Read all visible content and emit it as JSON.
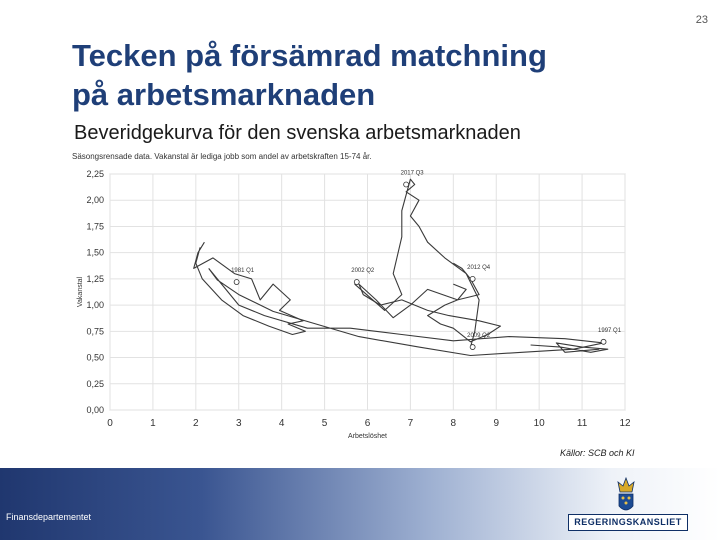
{
  "page_number": "23",
  "title_line1": "Tecken på försämrad matchning",
  "title_line2": "på arbetsmarknaden",
  "chart_title": "Beveridgekurva för den svenska arbetsmarknaden",
  "chart_subtitle": "Säsongsrensade data. Vakanstal är lediga jobb som andel av arbetskraften 15-74 år.",
  "source": "Källor: SCB och KI",
  "footer_department": "Finansdepartementet",
  "logo_text": "REGERINGSKANSLIET",
  "colors": {
    "title": "#1f3f78",
    "line": "#3a3a3a",
    "footer": "#20376f"
  },
  "chart_data": {
    "type": "line",
    "xlabel": "Arbetslöshet",
    "ylabel": "Vakanstal",
    "xlim": [
      0,
      12
    ],
    "ylim": [
      0,
      2.25
    ],
    "xticks": [
      "0",
      "1",
      "2",
      "3",
      "4",
      "5",
      "6",
      "7",
      "8",
      "9",
      "10",
      "11",
      "12"
    ],
    "yticks": [
      "0,00",
      "0,25",
      "0,50",
      "0,75",
      "1,00",
      "1,25",
      "1,50",
      "1,75",
      "2,00",
      "2,25"
    ],
    "grid": true,
    "series": [
      {
        "x": [
          2.2,
          2.05,
          1.95,
          2.4,
          2.9,
          3.3,
          3.5,
          3.8,
          4.2,
          3.95,
          4.5,
          4.15,
          4.55,
          4.25,
          3.7,
          3.1,
          2.6,
          2.15,
          2.0,
          2.1
        ],
        "y": [
          1.6,
          1.5,
          1.35,
          1.45,
          1.3,
          1.25,
          1.05,
          1.2,
          1.05,
          0.95,
          0.85,
          0.82,
          0.75,
          0.72,
          0.8,
          0.9,
          1.05,
          1.25,
          1.4,
          1.55
        ]
      },
      {
        "x": [
          2.3,
          3.0,
          3.6,
          4.6,
          5.6,
          6.8,
          8.0,
          9.3,
          10.6,
          11.5,
          10.8,
          9.6,
          8.4,
          7.2,
          5.8,
          4.8,
          3.8,
          3.0,
          2.5,
          2.3
        ],
        "y": [
          1.35,
          1.0,
          0.9,
          0.78,
          0.78,
          0.72,
          0.66,
          0.7,
          0.68,
          0.64,
          0.58,
          0.55,
          0.52,
          0.6,
          0.7,
          0.82,
          0.94,
          1.1,
          1.24,
          1.35
        ]
      },
      {
        "x": [
          8.0,
          8.2,
          8.4,
          8.6,
          8.1,
          7.4,
          7.0,
          6.6,
          6.2,
          5.8,
          5.9,
          6.3,
          6.8,
          7.4,
          7.9,
          8.6,
          9.1,
          8.8,
          8.4,
          8.0,
          7.7,
          7.4,
          7.8,
          8.1,
          8.3,
          8.0
        ],
        "y": [
          1.4,
          1.35,
          1.25,
          1.1,
          1.05,
          1.15,
          1.0,
          0.88,
          1.05,
          1.2,
          1.1,
          1.0,
          1.05,
          0.95,
          0.9,
          0.85,
          0.8,
          0.72,
          0.65,
          0.78,
          0.82,
          0.9,
          1.0,
          1.05,
          1.15,
          1.2
        ]
      },
      {
        "x": [
          8.4,
          8.5,
          8.6,
          8.3,
          7.8,
          7.4,
          7.2,
          7.0,
          7.2,
          6.9,
          7.1,
          7.0,
          6.8,
          6.8,
          6.6,
          6.8,
          6.4,
          5.7
        ],
        "y": [
          0.6,
          0.75,
          1.05,
          1.3,
          1.45,
          1.6,
          1.75,
          1.85,
          2.0,
          2.08,
          2.15,
          2.2,
          1.9,
          1.65,
          1.3,
          1.1,
          0.95,
          1.2
        ]
      },
      {
        "x": [
          9.8,
          10.5,
          11.2,
          11.6,
          11.0,
          10.4,
          10.6,
          11.4
        ],
        "y": [
          0.62,
          0.6,
          0.55,
          0.58,
          0.6,
          0.64,
          0.55,
          0.58
        ]
      }
    ],
    "annotations": [
      {
        "label": "2017 Q3",
        "x": 6.9,
        "y": 2.15
      },
      {
        "label": "1981 Q1",
        "x": 2.95,
        "y": 1.22
      },
      {
        "label": "2002 Q2",
        "x": 5.75,
        "y": 1.22
      },
      {
        "label": "2012 Q4",
        "x": 8.45,
        "y": 1.25
      },
      {
        "label": "2009 Q2",
        "x": 8.45,
        "y": 0.6
      },
      {
        "label": "1997 Q1",
        "x": 11.5,
        "y": 0.65
      }
    ]
  }
}
